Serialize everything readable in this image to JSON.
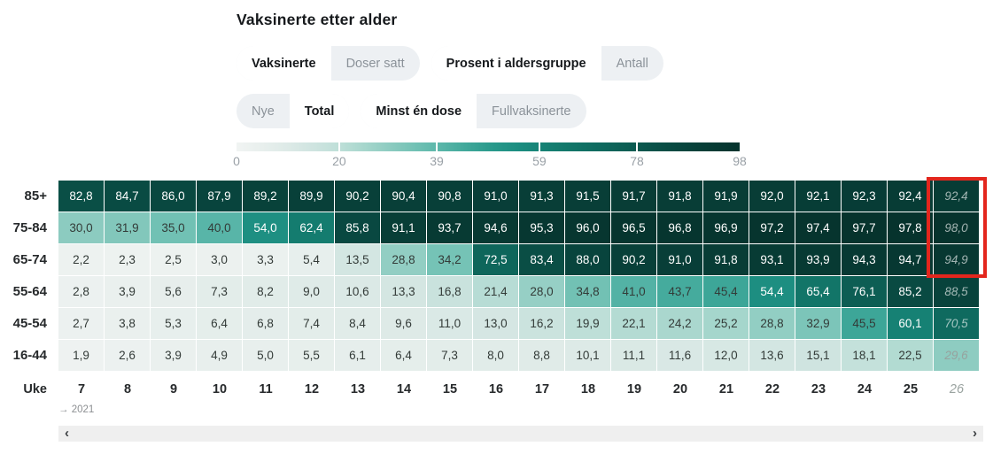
{
  "title": "Vaksinerte etter alder",
  "toggle_groups": [
    {
      "id": "dataset",
      "options": [
        "Vaksinerte",
        "Doser satt"
      ],
      "selected": 0
    },
    {
      "id": "metric",
      "options": [
        "Prosent i aldersgruppe",
        "Antall"
      ],
      "selected": 0
    },
    {
      "id": "period",
      "options": [
        "Nye",
        "Total"
      ],
      "selected": 1
    },
    {
      "id": "dose",
      "options": [
        "Minst én dose",
        "Fullvaksinerte"
      ],
      "selected": 0
    }
  ],
  "legend": {
    "ticks": [
      0,
      20,
      39,
      59,
      78,
      98
    ],
    "max_value": 98,
    "color_stops": [
      [
        0,
        "#f1f4f3"
      ],
      [
        5,
        "#e8efed"
      ],
      [
        10,
        "#ddeae7"
      ],
      [
        15,
        "#cfe4e0"
      ],
      [
        20,
        "#bedfd8"
      ],
      [
        25,
        "#a6d6cc"
      ],
      [
        30,
        "#8ccbc0"
      ],
      [
        35,
        "#71c1b4"
      ],
      [
        40,
        "#58b5a8"
      ],
      [
        45,
        "#3fa799"
      ],
      [
        50,
        "#28998b"
      ],
      [
        55,
        "#1b8d80"
      ],
      [
        60,
        "#168174"
      ],
      [
        65,
        "#127669"
      ],
      [
        70,
        "#0f6b60"
      ],
      [
        75,
        "#0d6056"
      ],
      [
        80,
        "#0b554c"
      ],
      [
        85,
        "#094a42"
      ],
      [
        90,
        "#084039"
      ],
      [
        98,
        "#06332d"
      ]
    ],
    "separator_values": [
      20,
      39,
      59,
      78
    ]
  },
  "chart_data": {
    "type": "heatmap",
    "title": "Vaksinerte etter alder",
    "x_label": "Uke",
    "x": [
      7,
      8,
      9,
      10,
      11,
      12,
      13,
      14,
      15,
      16,
      17,
      18,
      19,
      20,
      21,
      22,
      23,
      24,
      25,
      26
    ],
    "provisional_x": [
      26
    ],
    "year_label": "→ 2021",
    "categories": [
      "85+",
      "75-84",
      "65-74",
      "55-64",
      "45-54",
      "16-44"
    ],
    "series": [
      {
        "name": "85+",
        "values": [
          82.8,
          84.7,
          86.0,
          87.9,
          89.2,
          89.9,
          90.2,
          90.4,
          90.8,
          91.0,
          91.3,
          91.5,
          91.7,
          91.8,
          91.9,
          92.0,
          92.1,
          92.3,
          92.4,
          92.4
        ]
      },
      {
        "name": "75-84",
        "values": [
          30.0,
          31.9,
          35.0,
          40.0,
          54.0,
          62.4,
          85.8,
          91.1,
          93.7,
          94.6,
          95.3,
          96.0,
          96.5,
          96.8,
          96.9,
          97.2,
          97.4,
          97.7,
          97.8,
          98.0
        ]
      },
      {
        "name": "65-74",
        "values": [
          2.2,
          2.3,
          2.5,
          3.0,
          3.3,
          5.4,
          13.5,
          28.8,
          34.2,
          72.5,
          83.4,
          88.0,
          90.2,
          91.0,
          91.8,
          93.1,
          93.9,
          94.3,
          94.7,
          94.9
        ]
      },
      {
        "name": "55-64",
        "values": [
          2.8,
          3.9,
          5.6,
          7.3,
          8.2,
          9.0,
          10.6,
          13.3,
          16.8,
          21.4,
          28.0,
          34.8,
          41.0,
          43.7,
          45.4,
          54.4,
          65.4,
          76.1,
          85.2,
          88.5
        ]
      },
      {
        "name": "45-54",
        "values": [
          2.7,
          3.8,
          5.3,
          6.4,
          6.8,
          7.4,
          8.4,
          9.6,
          11.0,
          13.0,
          16.2,
          19.9,
          22.1,
          24.2,
          25.2,
          28.8,
          32.9,
          45.5,
          60.1,
          70.5
        ]
      },
      {
        "name": "16-44",
        "values": [
          1.9,
          2.6,
          3.9,
          4.9,
          5.0,
          5.5,
          6.1,
          6.4,
          7.3,
          8.0,
          8.8,
          10.1,
          11.1,
          11.6,
          12.0,
          13.6,
          15.1,
          18.1,
          22.5,
          29.6
        ]
      }
    ],
    "value_range": [
      0,
      98
    ],
    "decimal_separator": ",",
    "white_text_threshold": 50,
    "highlight": {
      "column_week": 26,
      "rows": [
        "85+",
        "75-84",
        "65-74"
      ],
      "color": "#e3261d",
      "border_px": 4
    }
  },
  "scrollbar": {
    "left_icon": "‹",
    "right_icon": "›"
  }
}
